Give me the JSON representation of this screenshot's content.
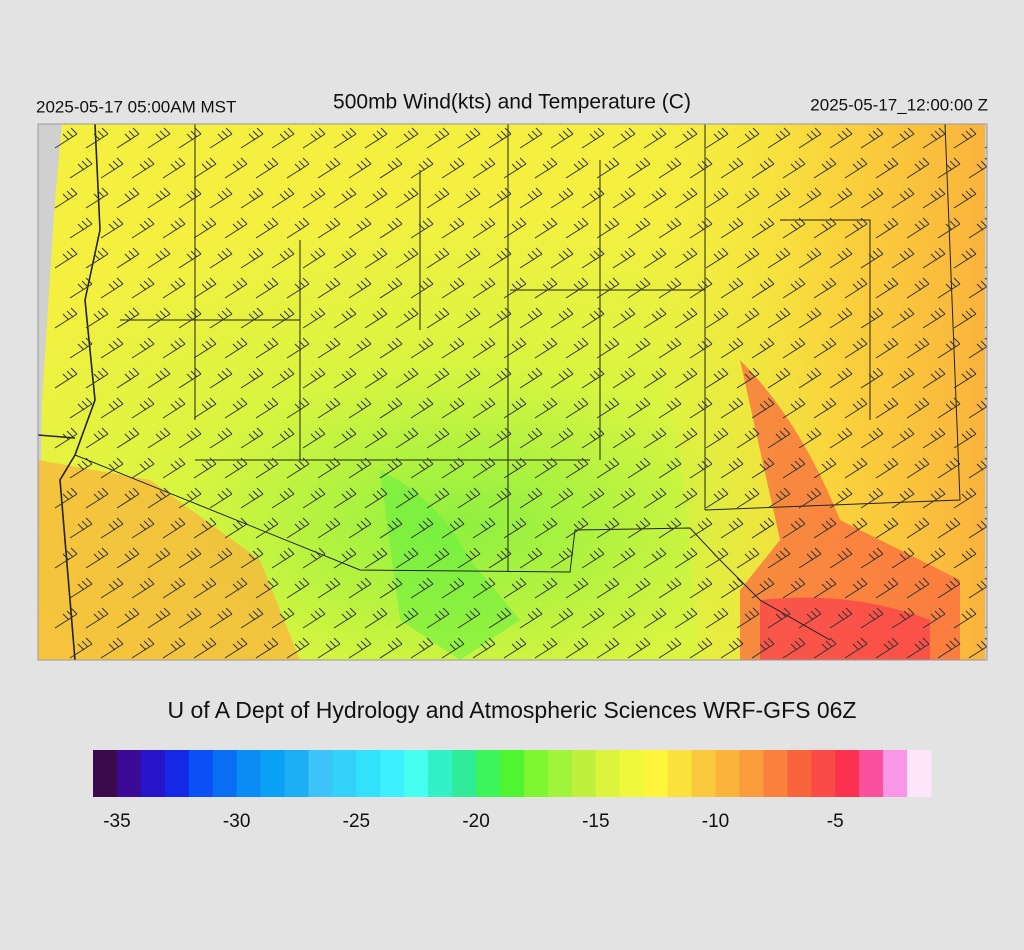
{
  "header": {
    "left": "2025-05-17 05:00AM MST",
    "title": "500mb Wind(kts) and Temperature (C)",
    "right": "2025-05-17_12:00:00 Z"
  },
  "footer": "U of A Dept of Hydrology and Atmospheric Sciences WRF-GFS 06Z",
  "colorbar": {
    "min": -36,
    "max": -1,
    "colors": [
      "#3c0a4a",
      "#3c0a96",
      "#2814c8",
      "#1428e6",
      "#0a50f5",
      "#0a6ef5",
      "#0a8cf5",
      "#0aa0f5",
      "#1eaef5",
      "#3cc3fa",
      "#32d2fa",
      "#32e1fc",
      "#3cf0ff",
      "#46fff0",
      "#32f0c8",
      "#30eb9a",
      "#3cf55a",
      "#50f532",
      "#80f532",
      "#a0f53c",
      "#bef03c",
      "#dcf53c",
      "#f0f83c",
      "#fff53c",
      "#fae13c",
      "#fac83c",
      "#fab43c",
      "#fa9b3c",
      "#fa823c",
      "#fa643c",
      "#fa4b46",
      "#fa3250",
      "#fa50a0",
      "#fa96e6",
      "#fde6fa"
    ],
    "ticks": [
      -35,
      -30,
      -25,
      -20,
      -15,
      -10,
      -5
    ]
  }
}
